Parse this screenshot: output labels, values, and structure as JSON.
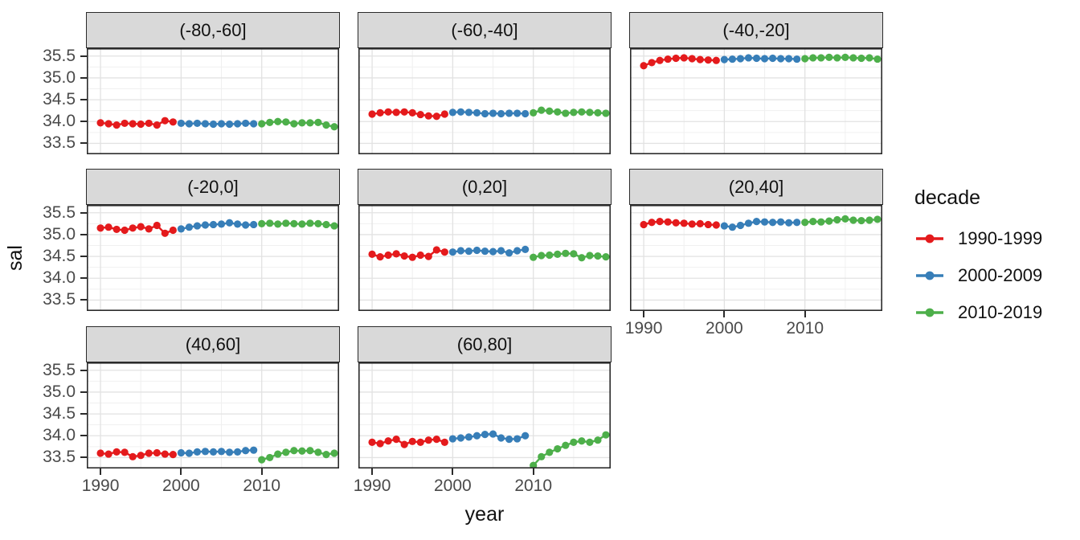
{
  "figure": {
    "background": "#FFFFFF"
  },
  "style_colors": {
    "strip_background": "#D9D9D9",
    "panel_border": "#2B2B2B",
    "grid_major": "#E2E2E2",
    "grid_minor": "#F0F0F0",
    "tick_text": "#4A4A4A",
    "title_text": "#111111"
  },
  "chart_data": {
    "type": "scatter",
    "title": "",
    "xlabel": "year",
    "ylabel": "sal",
    "x_ticks": [
      "1990",
      "2000",
      "2010"
    ],
    "x_tick_values": [
      1990,
      2000,
      2010
    ],
    "y_ticks": [
      "35.5",
      "35.0",
      "34.5",
      "34.0",
      "33.5"
    ],
    "y_tick_values": [
      35.5,
      35.0,
      34.5,
      34.0,
      33.5
    ],
    "x_range": [
      1988.3,
      2019.6
    ],
    "y_range": [
      33.25,
      35.68
    ],
    "grid": "major+minor",
    "legend": {
      "title": "decade",
      "position": "right",
      "entries": [
        {
          "label": "1990-1999",
          "color": "#E41A1C",
          "years": [
            1990,
            1999
          ]
        },
        {
          "label": "2000-2009",
          "color": "#377EB8",
          "years": [
            2000,
            2009
          ]
        },
        {
          "label": "2010-2019",
          "color": "#4DAF4A",
          "years": [
            2010,
            2019
          ]
        }
      ]
    },
    "years": [
      1990,
      1991,
      1992,
      1993,
      1994,
      1995,
      1996,
      1997,
      1998,
      1999,
      2000,
      2001,
      2002,
      2003,
      2004,
      2005,
      2006,
      2007,
      2008,
      2009,
      2010,
      2011,
      2012,
      2013,
      2014,
      2015,
      2016,
      2017,
      2018,
      2019
    ],
    "facets": [
      {
        "label": "(-80,-60]",
        "values": [
          33.97,
          33.95,
          33.92,
          33.96,
          33.95,
          33.94,
          33.96,
          33.92,
          34.02,
          33.99,
          33.96,
          33.95,
          33.96,
          33.95,
          33.94,
          33.95,
          33.94,
          33.95,
          33.96,
          33.95,
          33.95,
          33.98,
          34.0,
          33.99,
          33.95,
          33.97,
          33.97,
          33.98,
          33.92,
          33.88
        ]
      },
      {
        "label": "(-60,-40]",
        "values": [
          34.17,
          34.2,
          34.22,
          34.21,
          34.22,
          34.2,
          34.16,
          34.13,
          34.12,
          34.17,
          34.21,
          34.22,
          34.21,
          34.2,
          34.18,
          34.19,
          34.18,
          34.19,
          34.19,
          34.18,
          34.2,
          34.26,
          34.24,
          34.22,
          34.19,
          34.21,
          34.22,
          34.21,
          34.2,
          34.19
        ]
      },
      {
        "label": "(-40,-20]",
        "values": [
          35.28,
          35.35,
          35.4,
          35.43,
          35.45,
          35.46,
          35.44,
          35.42,
          35.41,
          35.4,
          35.42,
          35.43,
          35.44,
          35.46,
          35.45,
          35.44,
          35.45,
          35.44,
          35.44,
          35.43,
          35.44,
          35.46,
          35.46,
          35.47,
          35.46,
          35.47,
          35.46,
          35.45,
          35.46,
          35.43
        ]
      },
      {
        "label": "(-20,0]",
        "values": [
          35.15,
          35.17,
          35.12,
          35.1,
          35.15,
          35.18,
          35.13,
          35.21,
          35.03,
          35.1,
          35.13,
          35.17,
          35.2,
          35.22,
          35.23,
          35.24,
          35.27,
          35.24,
          35.22,
          35.23,
          35.25,
          35.26,
          35.24,
          35.26,
          35.25,
          35.24,
          35.26,
          35.25,
          35.23,
          35.2
        ]
      },
      {
        "label": "(0,20]",
        "values": [
          34.55,
          34.49,
          34.53,
          34.56,
          34.51,
          34.48,
          34.53,
          34.5,
          34.65,
          34.6,
          34.6,
          34.63,
          34.62,
          34.64,
          34.62,
          34.61,
          34.63,
          34.58,
          34.63,
          34.66,
          34.48,
          34.52,
          34.53,
          34.55,
          34.57,
          34.56,
          34.47,
          34.52,
          34.51,
          34.49
        ]
      },
      {
        "label": "(20,40]",
        "values": [
          35.23,
          35.28,
          35.3,
          35.29,
          35.27,
          35.26,
          35.24,
          35.25,
          35.23,
          35.22,
          35.2,
          35.17,
          35.21,
          35.26,
          35.3,
          35.29,
          35.28,
          35.29,
          35.27,
          35.28,
          35.28,
          35.3,
          35.29,
          35.31,
          35.34,
          35.36,
          35.33,
          35.32,
          35.33,
          35.35
        ]
      },
      {
        "label": "(40,60]",
        "values": [
          33.6,
          33.58,
          33.63,
          33.62,
          33.52,
          33.55,
          33.6,
          33.61,
          33.58,
          33.57,
          33.61,
          33.6,
          33.63,
          33.64,
          33.63,
          33.64,
          33.62,
          33.63,
          33.66,
          33.67,
          33.45,
          33.5,
          33.58,
          33.62,
          33.66,
          33.65,
          33.66,
          33.62,
          33.57,
          33.6
        ]
      },
      {
        "label": "(60,80]",
        "values": [
          33.85,
          33.82,
          33.88,
          33.92,
          33.8,
          33.87,
          33.85,
          33.9,
          33.92,
          33.85,
          33.93,
          33.95,
          33.97,
          34.0,
          34.03,
          34.04,
          33.95,
          33.92,
          33.93,
          34.0,
          33.32,
          33.52,
          33.62,
          33.7,
          33.78,
          33.85,
          33.88,
          33.85,
          33.9,
          34.02
        ]
      }
    ]
  }
}
